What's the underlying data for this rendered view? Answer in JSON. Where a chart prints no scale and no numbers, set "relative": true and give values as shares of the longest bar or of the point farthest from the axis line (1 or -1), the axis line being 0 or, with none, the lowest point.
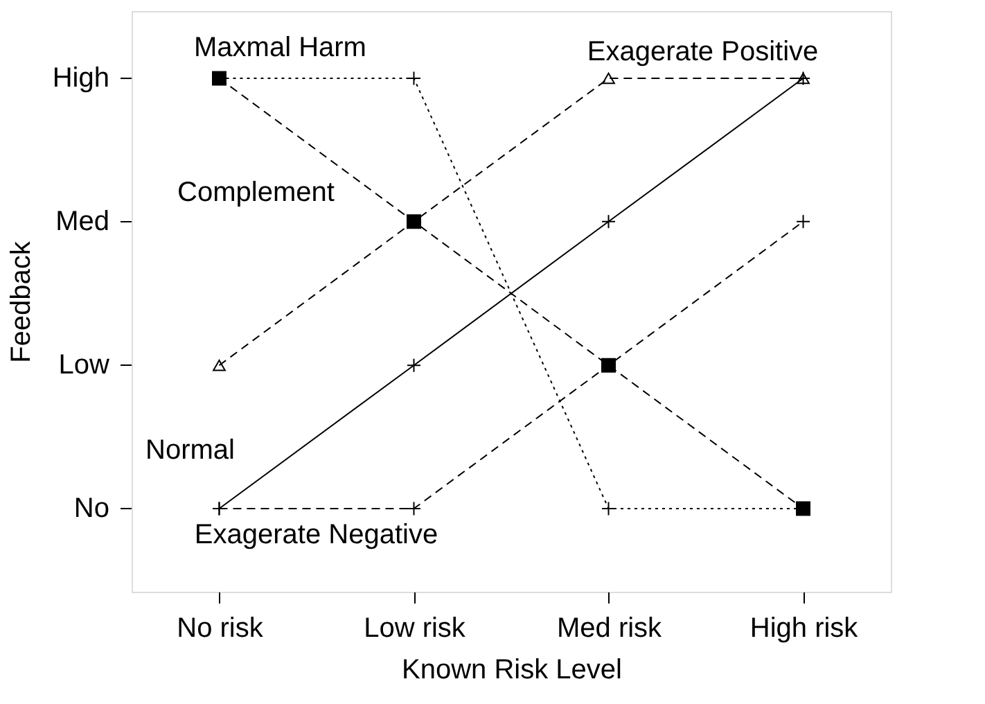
{
  "chart_data": {
    "type": "line",
    "xlabel": "Known Risk Level",
    "ylabel": "Feedback",
    "categories": [
      "No risk",
      "Low risk",
      "Med risk",
      "High risk"
    ],
    "relative": true,
    "series": [
      {
        "name": "Normal",
        "color": "#000000",
        "values": [
          0.162,
          0.441,
          0.721,
          1
        ],
        "marker": "cross",
        "line_style": "solid"
      },
      {
        "name": "Exagerate Negative",
        "color": "#000000",
        "values": [
          0.162,
          0.162,
          0.441,
          0.721
        ],
        "marker": "cross",
        "line_style": "dashed"
      },
      {
        "name": "Complement",
        "color": "#000000",
        "values": [
          1,
          0.721,
          0.441,
          0.162
        ],
        "marker": "square",
        "line_style": "dashed"
      },
      {
        "name": "Exagerate Positive",
        "color": "#000000",
        "values": [
          0.441,
          0.721,
          1,
          1
        ],
        "marker": "triangle",
        "line_style": "dashed"
      },
      {
        "name": "Maxmal Harm",
        "color": "#000000",
        "values": [
          1,
          1,
          0.162,
          0.162
        ],
        "marker": "cross",
        "line_style": "dotted"
      }
    ],
    "annotations": [
      "No",
      "Low",
      "Med",
      "High"
    ],
    "grid": false,
    "legend": false
  }
}
